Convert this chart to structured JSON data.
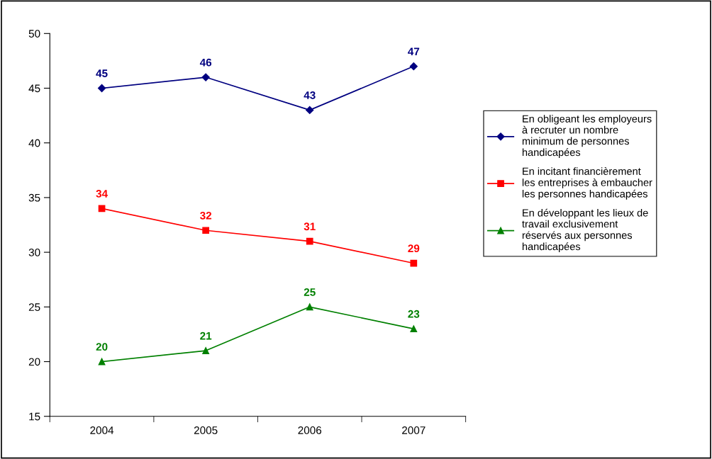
{
  "chart_data": {
    "type": "line",
    "categories": [
      "2004",
      "2005",
      "2006",
      "2007"
    ],
    "series": [
      {
        "name": "En obligeant les employeurs\nà recruter un nombre\nminimum de personnes\nhandicapées",
        "color": "#000080",
        "marker": "diamond",
        "values": [
          45,
          46,
          43,
          47
        ]
      },
      {
        "name": "En incitant financièrement\nles entreprises à embaucher\nles personnes handicapées",
        "color": "#ff0000",
        "marker": "square",
        "values": [
          34,
          32,
          31,
          29
        ]
      },
      {
        "name": "En développant les lieux de\ntravail exclusivement\nréservés aux personnes\nhandicapées",
        "color": "#008000",
        "marker": "triangle",
        "values": [
          20,
          21,
          25,
          23
        ]
      }
    ],
    "ylim": [
      15,
      50
    ],
    "yticks": [
      15,
      20,
      25,
      30,
      35,
      40,
      45,
      50
    ],
    "grid": false,
    "legend": "right",
    "data_labels": true
  }
}
